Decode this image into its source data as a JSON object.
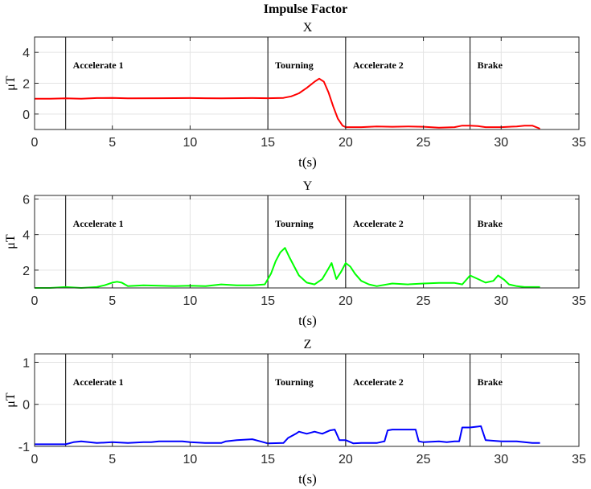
{
  "figure": {
    "title": "Impulse Factor"
  },
  "chart_data": [
    {
      "type": "line",
      "title": "X",
      "xlabel": "t(s)",
      "ylabel": "μT",
      "xlim": [
        0,
        35
      ],
      "ylim": [
        -1,
        5
      ],
      "xticks": [
        "0",
        "5",
        "10",
        "15",
        "20",
        "25",
        "30",
        "35"
      ],
      "yticks": [
        "4",
        "2",
        "0"
      ],
      "ytick_values": [
        4,
        2,
        0
      ],
      "grid": true,
      "color": "#ff0000",
      "phases": [
        {
          "x": 2,
          "label": "Accelerate 1"
        },
        {
          "x": 15,
          "label": "Tourning"
        },
        {
          "x": 20,
          "label": "Accelerate 2"
        },
        {
          "x": 28,
          "label": "Brake"
        }
      ],
      "series": [
        {
          "x": [
            0,
            1,
            2,
            3,
            4,
            5,
            6,
            8,
            10,
            12,
            14,
            15,
            16,
            16.5,
            17,
            17.5,
            18,
            18.3,
            18.6,
            18.9,
            19.2,
            19.5,
            19.8,
            20,
            20.5,
            21,
            22,
            23,
            24,
            25,
            26,
            27,
            27.5,
            28,
            28.5,
            29,
            30,
            31,
            31.5,
            32,
            32.5
          ],
          "y": [
            1.0,
            1.0,
            1.02,
            1.0,
            1.04,
            1.05,
            1.02,
            1.03,
            1.04,
            1.02,
            1.04,
            1.03,
            1.05,
            1.15,
            1.35,
            1.7,
            2.1,
            2.3,
            2.1,
            1.4,
            0.5,
            -0.3,
            -0.75,
            -0.85,
            -0.85,
            -0.85,
            -0.8,
            -0.82,
            -0.8,
            -0.82,
            -0.88,
            -0.85,
            -0.75,
            -0.75,
            -0.78,
            -0.85,
            -0.85,
            -0.8,
            -0.75,
            -0.75,
            -0.95
          ]
        }
      ]
    },
    {
      "type": "line",
      "title": "Y",
      "xlabel": "t(s)",
      "ylabel": "μT",
      "xlim": [
        0,
        35
      ],
      "ylim": [
        1,
        6.2
      ],
      "xticks": [
        "0",
        "5",
        "10",
        "15",
        "20",
        "25",
        "30",
        "35"
      ],
      "yticks": [
        "6",
        "4",
        "2"
      ],
      "ytick_values": [
        6,
        4,
        2
      ],
      "grid": true,
      "color": "#00ff00",
      "phases": [
        {
          "x": 2,
          "label": "Accelerate 1"
        },
        {
          "x": 15,
          "label": "Tourning"
        },
        {
          "x": 20,
          "label": "Accelerate 2"
        },
        {
          "x": 28,
          "label": "Brake"
        }
      ],
      "series": [
        {
          "x": [
            0,
            1,
            2,
            3,
            4,
            4.5,
            5,
            5.3,
            5.6,
            6,
            7,
            8,
            9,
            10,
            11,
            12,
            13,
            14,
            14.8,
            15.2,
            15.5,
            15.8,
            16.1,
            16.4,
            16.7,
            17,
            17.5,
            18,
            18.5,
            18.9,
            19.1,
            19.4,
            19.7,
            20,
            20.3,
            20.6,
            21,
            21.5,
            22,
            23,
            24,
            25,
            26,
            27,
            27.5,
            28,
            28.5,
            29,
            29.5,
            29.8,
            30.2,
            30.5,
            31,
            31.5,
            32,
            32.5
          ],
          "y": [
            1.0,
            1.0,
            1.05,
            1.0,
            1.05,
            1.15,
            1.3,
            1.35,
            1.3,
            1.1,
            1.15,
            1.12,
            1.1,
            1.12,
            1.1,
            1.2,
            1.15,
            1.15,
            1.2,
            1.8,
            2.5,
            3.0,
            3.25,
            2.7,
            2.2,
            1.7,
            1.3,
            1.2,
            1.5,
            2.1,
            2.4,
            1.5,
            1.9,
            2.4,
            2.2,
            1.8,
            1.4,
            1.2,
            1.1,
            1.25,
            1.2,
            1.25,
            1.28,
            1.28,
            1.2,
            1.7,
            1.5,
            1.3,
            1.4,
            1.7,
            1.45,
            1.2,
            1.1,
            1.05,
            1.05,
            1.05
          ]
        }
      ]
    },
    {
      "type": "line",
      "title": "Z",
      "xlabel": "t(s)",
      "ylabel": "μT",
      "xlim": [
        0,
        35
      ],
      "ylim": [
        -1,
        1.2
      ],
      "xticks": [
        "0",
        "5",
        "10",
        "15",
        "20",
        "25",
        "30",
        "35"
      ],
      "yticks": [
        "1",
        "0",
        "-1"
      ],
      "ytick_values": [
        1,
        0,
        -1
      ],
      "grid": true,
      "color": "#0000ff",
      "phases": [
        {
          "x": 2,
          "label": "Accelerate 1"
        },
        {
          "x": 15,
          "label": "Tourning"
        },
        {
          "x": 20,
          "label": "Accelerate 2"
        },
        {
          "x": 28,
          "label": "Brake"
        }
      ],
      "series": [
        {
          "x": [
            0,
            1,
            2,
            2.5,
            3,
            4,
            5,
            6,
            7,
            7.5,
            8,
            9,
            9.5,
            10,
            11,
            12,
            12.3,
            13,
            14,
            14.5,
            15,
            16,
            16.3,
            16.8,
            17,
            17.5,
            18,
            18.5,
            19,
            19.3,
            19.6,
            20,
            20.5,
            21,
            22,
            22.5,
            22.7,
            23,
            24,
            24.5,
            24.7,
            25,
            26,
            26.5,
            27,
            27.3,
            27.5,
            28,
            28.5,
            28.7,
            29,
            30,
            31,
            31.5,
            32,
            32.5
          ],
          "y": [
            -0.95,
            -0.95,
            -0.95,
            -0.9,
            -0.88,
            -0.92,
            -0.9,
            -0.92,
            -0.9,
            -0.9,
            -0.88,
            -0.88,
            -0.88,
            -0.9,
            -0.92,
            -0.92,
            -0.88,
            -0.85,
            -0.83,
            -0.88,
            -0.93,
            -0.92,
            -0.8,
            -0.7,
            -0.65,
            -0.7,
            -0.65,
            -0.7,
            -0.62,
            -0.6,
            -0.85,
            -0.85,
            -0.93,
            -0.92,
            -0.92,
            -0.88,
            -0.62,
            -0.6,
            -0.6,
            -0.6,
            -0.88,
            -0.9,
            -0.88,
            -0.9,
            -0.88,
            -0.88,
            -0.55,
            -0.55,
            -0.53,
            -0.52,
            -0.85,
            -0.88,
            -0.88,
            -0.9,
            -0.92,
            -0.92
          ]
        }
      ]
    }
  ]
}
